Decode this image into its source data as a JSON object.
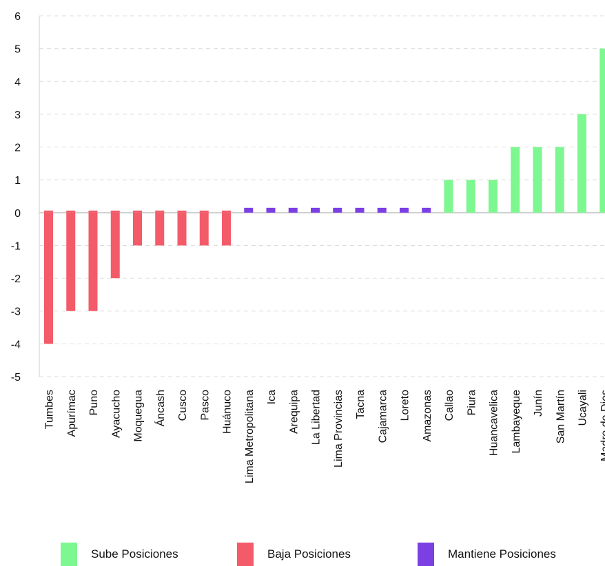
{
  "chart_data": {
    "type": "bar",
    "categories": [
      "Tumbes",
      "Apurímac",
      "Puno",
      "Ayacucho",
      "Moquegua",
      "Áncash",
      "Cusco",
      "Pasco",
      "Huánuco",
      "Lima Metropolitana",
      "Ica",
      "Arequipa",
      "La Libertad",
      "Lima Provincias",
      "Tacna",
      "Cajamarca",
      "Loreto",
      "Amazonas",
      "Callao",
      "Piura",
      "Huancavelica",
      "Lambayeque",
      "Junín",
      "San Martín",
      "Ucayali",
      "Madre de Dios"
    ],
    "values": [
      -4,
      -3,
      -3,
      -2,
      -1,
      -1,
      -1,
      -1,
      -1,
      0,
      0,
      0,
      0,
      0,
      0,
      0,
      0,
      0,
      1,
      1,
      1,
      2,
      2,
      2,
      3,
      5
    ],
    "bar_groups": [
      "baja",
      "baja",
      "baja",
      "baja",
      "baja",
      "baja",
      "baja",
      "baja",
      "baja",
      "mantiene",
      "mantiene",
      "mantiene",
      "mantiene",
      "mantiene",
      "mantiene",
      "mantiene",
      "mantiene",
      "mantiene",
      "sube",
      "sube",
      "sube",
      "sube",
      "sube",
      "sube",
      "sube",
      "sube"
    ],
    "ylim": [
      -5,
      6
    ],
    "y_ticks": [
      "6",
      "5",
      "4",
      "3",
      "2",
      "1",
      "0",
      "-1",
      "-2",
      "-3",
      "-4",
      "-5"
    ],
    "grid": true,
    "title": "",
    "xlabel": "",
    "ylabel": "",
    "legend_position": "bottom",
    "legend": [
      {
        "key": "sube",
        "label": "Sube Posiciones",
        "color": "#7df78f"
      },
      {
        "key": "baja",
        "label": "Baja Posiciones",
        "color": "#f45b69"
      },
      {
        "key": "mantiene",
        "label": "Mantiene Posiciones",
        "color": "#7b3fe4"
      }
    ]
  }
}
